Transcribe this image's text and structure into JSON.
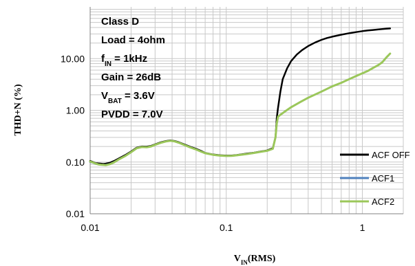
{
  "chart_data": {
    "type": "line",
    "xscale": "log",
    "yscale": "log",
    "xlim": [
      0.01,
      2
    ],
    "ylim": [
      0.01,
      100
    ],
    "xticks": [
      "0.01",
      "0.1",
      "1"
    ],
    "yticks": [
      "0.01",
      "0.10",
      "1.00",
      "10.00"
    ],
    "xlabel_main": "V",
    "xlabel_sub": "IN",
    "xlabel_tail": "(RMS)",
    "ylabel": "THD+N (%)",
    "grid": true,
    "legend_position": "bottom-right",
    "annotations": [
      {
        "main": "Class D",
        "sub": "",
        "tail": ""
      },
      {
        "main": "Load = 4ohm",
        "sub": "",
        "tail": ""
      },
      {
        "main": "f",
        "sub": "IN",
        "tail": " = 1kHz"
      },
      {
        "main": "Gain = 26dB",
        "sub": "",
        "tail": ""
      },
      {
        "main": "V",
        "sub": "BAT",
        "tail": " = 3.6V"
      },
      {
        "main": "PVDD = 7.0V",
        "sub": "",
        "tail": ""
      }
    ],
    "series": [
      {
        "name": "ACF OFF",
        "color": "#000000",
        "x": [
          0.01,
          0.0105,
          0.011,
          0.0115,
          0.012,
          0.0125,
          0.013,
          0.014,
          0.015,
          0.016,
          0.018,
          0.02,
          0.022,
          0.024,
          0.026,
          0.028,
          0.03,
          0.033,
          0.036,
          0.039,
          0.042,
          0.045,
          0.05,
          0.055,
          0.06,
          0.065,
          0.07,
          0.08,
          0.09,
          0.1,
          0.11,
          0.12,
          0.14,
          0.16,
          0.18,
          0.2,
          0.22,
          0.23,
          0.235,
          0.24,
          0.25,
          0.26,
          0.28,
          0.3,
          0.33,
          0.36,
          0.4,
          0.45,
          0.5,
          0.55,
          0.6,
          0.7,
          0.8,
          0.9,
          1.0,
          1.1,
          1.2,
          1.3,
          1.4,
          1.5,
          1.6
        ],
        "y": [
          0.105,
          0.1,
          0.095,
          0.094,
          0.093,
          0.092,
          0.093,
          0.097,
          0.105,
          0.115,
          0.135,
          0.16,
          0.19,
          0.2,
          0.198,
          0.205,
          0.22,
          0.24,
          0.255,
          0.262,
          0.255,
          0.24,
          0.215,
          0.195,
          0.18,
          0.165,
          0.15,
          0.14,
          0.135,
          0.133,
          0.134,
          0.137,
          0.145,
          0.152,
          0.16,
          0.168,
          0.185,
          0.3,
          0.7,
          1.1,
          2.3,
          4.0,
          6.5,
          9.0,
          12.0,
          14.5,
          17.5,
          20.5,
          23.0,
          25.0,
          26.5,
          29.0,
          31.0,
          32.5,
          34.0,
          35.0,
          35.8,
          36.5,
          37.2,
          37.8,
          38.2
        ]
      },
      {
        "name": "ACF1",
        "color": "#4f81bd",
        "x": [
          0.01,
          0.0105,
          0.011,
          0.0115,
          0.012,
          0.0125,
          0.013,
          0.014,
          0.015,
          0.016,
          0.018,
          0.02,
          0.022,
          0.024,
          0.026,
          0.028,
          0.03,
          0.033,
          0.036,
          0.039,
          0.042,
          0.045,
          0.05,
          0.055,
          0.06,
          0.065,
          0.07,
          0.08,
          0.09,
          0.1,
          0.11,
          0.12,
          0.14,
          0.16,
          0.18,
          0.2,
          0.22,
          0.23,
          0.235,
          0.24,
          0.25,
          0.27,
          0.3,
          0.35,
          0.4,
          0.5,
          0.6,
          0.7,
          0.8,
          0.9,
          1.0,
          1.1,
          1.2,
          1.3,
          1.4,
          1.5,
          1.6
        ],
        "y": [
          0.1,
          0.097,
          0.092,
          0.09,
          0.089,
          0.088,
          0.088,
          0.092,
          0.1,
          0.11,
          0.13,
          0.155,
          0.185,
          0.195,
          0.193,
          0.2,
          0.215,
          0.235,
          0.25,
          0.258,
          0.25,
          0.235,
          0.21,
          0.19,
          0.175,
          0.16,
          0.148,
          0.138,
          0.133,
          0.131,
          0.132,
          0.135,
          0.142,
          0.15,
          0.158,
          0.165,
          0.18,
          0.3,
          0.55,
          0.75,
          0.82,
          0.95,
          1.15,
          1.45,
          1.75,
          2.3,
          2.9,
          3.4,
          4.0,
          4.6,
          5.2,
          5.8,
          6.6,
          7.4,
          8.5,
          10.5,
          12.5
        ]
      },
      {
        "name": "ACF2",
        "color": "#9bc75a",
        "x": [
          0.01,
          0.0105,
          0.011,
          0.0115,
          0.012,
          0.0125,
          0.013,
          0.014,
          0.015,
          0.016,
          0.018,
          0.02,
          0.022,
          0.024,
          0.026,
          0.028,
          0.03,
          0.033,
          0.036,
          0.039,
          0.042,
          0.045,
          0.05,
          0.055,
          0.06,
          0.065,
          0.07,
          0.08,
          0.09,
          0.1,
          0.11,
          0.12,
          0.14,
          0.16,
          0.18,
          0.2,
          0.22,
          0.23,
          0.235,
          0.24,
          0.25,
          0.27,
          0.3,
          0.35,
          0.4,
          0.5,
          0.6,
          0.7,
          0.8,
          0.9,
          1.0,
          1.1,
          1.2,
          1.3,
          1.4,
          1.5,
          1.6
        ],
        "y": [
          0.102,
          0.098,
          0.093,
          0.09,
          0.089,
          0.088,
          0.087,
          0.091,
          0.099,
          0.11,
          0.13,
          0.155,
          0.185,
          0.195,
          0.193,
          0.2,
          0.215,
          0.235,
          0.25,
          0.258,
          0.25,
          0.235,
          0.21,
          0.19,
          0.175,
          0.16,
          0.148,
          0.138,
          0.133,
          0.131,
          0.132,
          0.135,
          0.142,
          0.15,
          0.158,
          0.165,
          0.18,
          0.3,
          0.55,
          0.75,
          0.82,
          0.95,
          1.15,
          1.45,
          1.75,
          2.3,
          2.9,
          3.4,
          4.0,
          4.6,
          5.2,
          5.8,
          6.6,
          7.4,
          8.5,
          10.5,
          12.5
        ]
      }
    ]
  }
}
